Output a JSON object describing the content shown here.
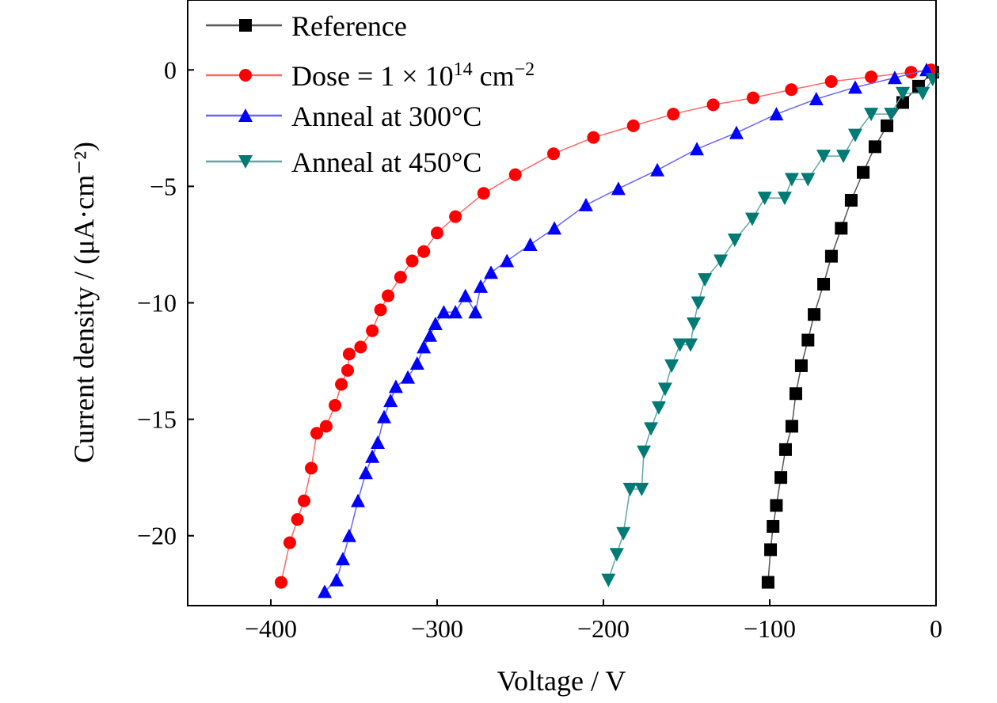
{
  "chart_data": {
    "type": "line",
    "title": "",
    "xlabel": "Voltage / V",
    "ylabel": "Current density / (μA·cm⁻²)",
    "xlim": [
      -450,
      0
    ],
    "ylim": [
      -23,
      3
    ],
    "xticks": [
      -400,
      -300,
      -200,
      -100,
      0
    ],
    "yticks": [
      0,
      -5,
      -10,
      -15,
      -20
    ],
    "xtick_labels": [
      "−400",
      "−300",
      "−200",
      "−100",
      "0"
    ],
    "ytick_labels": [
      "0",
      "−5",
      "−10",
      "−15",
      "−20"
    ],
    "grid": false,
    "legend_position": "top-left",
    "series": [
      {
        "name": "Reference",
        "legend_text": {
          "main": "Reference"
        },
        "color": "#000000",
        "line_color": "#555555",
        "marker": "square",
        "x": [
          -101,
          -99.5,
          -98,
          -96,
          -93.3,
          -90.5,
          -86.7,
          -84.3,
          -81,
          -77,
          -73.3,
          -67.6,
          -62.9,
          -57,
          -51,
          -43.8,
          -36.7,
          -29.5,
          -20,
          -10.5,
          -2
        ],
        "y": [
          -22,
          -20.6,
          -19.6,
          -18.7,
          -17.5,
          -16.3,
          -15.3,
          -13.9,
          -12.7,
          -11.6,
          -10.5,
          -9.2,
          -8.0,
          -6.8,
          -5.6,
          -4.4,
          -3.3,
          -2.4,
          -1.4,
          -0.7,
          -0.1
        ]
      },
      {
        "name": "Dose = 1 × 10^14 cm^−2",
        "legend_text": {
          "main": "Dose = 1 × 10",
          "sup1": "14",
          "mid": " cm",
          "sup2": "−2"
        },
        "color": "#ff0000",
        "line_color": "#ff6666",
        "marker": "circle",
        "x": [
          -393.8,
          -388.6,
          -384,
          -380,
          -375.7,
          -372.4,
          -366.7,
          -361.4,
          -357.6,
          -353.8,
          -352.9,
          -346,
          -339,
          -334,
          -329.5,
          -322,
          -315,
          -308,
          -300,
          -289,
          -272,
          -253,
          -230,
          -206,
          -182,
          -158,
          -134,
          -110,
          -87,
          -63,
          -39,
          -15,
          -3
        ],
        "y": [
          -22.0,
          -20.3,
          -19.3,
          -18.5,
          -17.1,
          -15.6,
          -15.3,
          -14.4,
          -13.5,
          -12.9,
          -12.2,
          -11.9,
          -11.2,
          -10.3,
          -9.7,
          -8.9,
          -8.2,
          -7.8,
          -7.0,
          -6.3,
          -5.3,
          -4.5,
          -3.6,
          -2.9,
          -2.4,
          -1.9,
          -1.5,
          -1.2,
          -0.85,
          -0.5,
          -0.3,
          -0.1,
          0
        ]
      },
      {
        "name": "Anneal at 300°C",
        "legend_text": {
          "main": "Anneal at 300°C"
        },
        "color": "#0000ff",
        "line_color": "#6666ff",
        "marker": "triangle-up",
        "x": [
          -367.6,
          -360.5,
          -356.7,
          -352.9,
          -347.6,
          -342.9,
          -339,
          -335.7,
          -331.9,
          -328,
          -324.8,
          -317.6,
          -312,
          -308,
          -304.3,
          -301,
          -296,
          -289,
          -283,
          -277,
          -273.8,
          -267.6,
          -258,
          -244,
          -229.5,
          -210.5,
          -191,
          -167.6,
          -143.8,
          -120,
          -96,
          -72,
          -48.6,
          -24.8,
          -5.7
        ],
        "y": [
          -22.4,
          -21.9,
          -21,
          -20,
          -18.5,
          -17.3,
          -16.6,
          -16,
          -14.9,
          -14.2,
          -13.6,
          -13.2,
          -12.6,
          -11.9,
          -11.4,
          -10.9,
          -10.4,
          -10.4,
          -9.7,
          -10.4,
          -9.3,
          -8.7,
          -8.2,
          -7.5,
          -6.8,
          -5.8,
          -5.1,
          -4.3,
          -3.4,
          -2.7,
          -1.9,
          -1.25,
          -0.75,
          -0.34,
          0
        ]
      },
      {
        "name": "Anneal at 450°C",
        "legend_text": {
          "main": "Anneal at 450°C"
        },
        "color": "#007a74",
        "line_color": "#5fa8a4",
        "marker": "triangle-down",
        "x": [
          -197,
          -192,
          -188,
          -184,
          -177,
          -175.7,
          -171.4,
          -166.7,
          -162.9,
          -159,
          -154,
          -147.6,
          -145.7,
          -143,
          -139,
          -129.5,
          -121,
          -110.5,
          -103,
          -91,
          -86.7,
          -77,
          -67.6,
          -55.7,
          -48.6,
          -39,
          -27,
          -20,
          -8,
          -2
        ],
        "y": [
          -21.9,
          -20.8,
          -19.9,
          -18.0,
          -18.0,
          -16.4,
          -15.4,
          -14.5,
          -13.7,
          -12.7,
          -11.8,
          -11.8,
          -10.9,
          -10.0,
          -9.0,
          -8.2,
          -7.3,
          -6.4,
          -5.5,
          -5.5,
          -4.7,
          -4.7,
          -3.7,
          -3.7,
          -2.8,
          -1.9,
          -1.9,
          -1.0,
          -1.0,
          -0.4
        ]
      }
    ]
  }
}
